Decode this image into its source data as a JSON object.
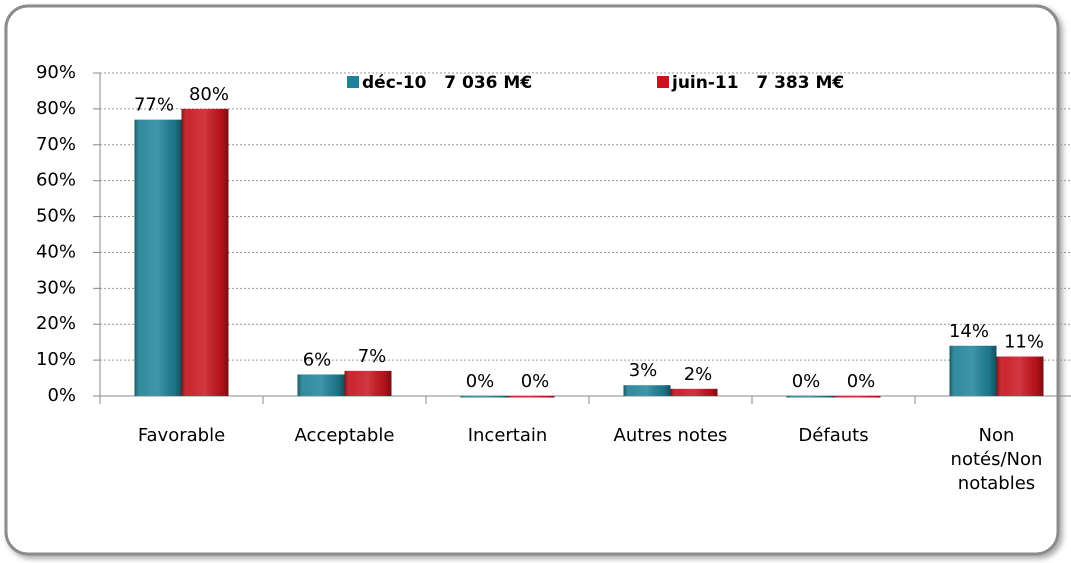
{
  "chart_data": {
    "type": "bar",
    "categories": [
      "Favorable",
      "Acceptable",
      "Incertain",
      "Autres notes",
      "Défauts",
      "Non notés/Non notables"
    ],
    "series": [
      {
        "name": "déc-10   7 036 M€",
        "color": "#1f8398",
        "values": [
          77,
          6,
          0,
          3,
          0,
          14
        ],
        "value_labels": [
          "77%",
          "6%",
          "0%",
          "3%",
          "0%",
          "14%"
        ]
      },
      {
        "name": "juin-11   7 383 M€",
        "color": "#c8141e",
        "values": [
          80,
          7,
          0,
          2,
          0,
          11
        ],
        "value_labels": [
          "80%",
          "7%",
          "0%",
          "2%",
          "0%",
          "11%"
        ]
      }
    ],
    "ylim": [
      0,
      90
    ],
    "yticks": [
      {
        "value": 0,
        "label": "0%"
      },
      {
        "value": 10,
        "label": "10%"
      },
      {
        "value": 20,
        "label": "20%"
      },
      {
        "value": 30,
        "label": "30%"
      },
      {
        "value": 40,
        "label": "40%"
      },
      {
        "value": 50,
        "label": "50%"
      },
      {
        "value": 60,
        "label": "60%"
      },
      {
        "value": 70,
        "label": "70%"
      },
      {
        "value": 80,
        "label": "80%"
      },
      {
        "value": 90,
        "label": "90%"
      }
    ],
    "grid": true,
    "legend": "top"
  }
}
